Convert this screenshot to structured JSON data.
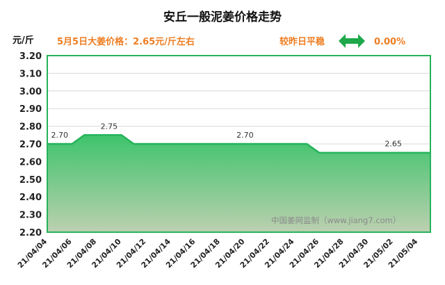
{
  "header": {
    "title": "安丘一般泥姜价格走势",
    "unit": "元/斤",
    "price_text": "5月5日大姜价格：2.65元/斤左右",
    "change_text": "较昨日平稳",
    "change_icon": "double-arrow-icon",
    "change_value": "0.00%"
  },
  "watermark": "中国姜网监制（www.jiang7.com）",
  "colors": {
    "accent": "#ee7d22",
    "line": "#25b35a",
    "fill_top": "#3ec46c",
    "fill_bottom": "#bcd0b0",
    "arrow": "#1ea84a"
  },
  "chart_data": {
    "type": "area",
    "x": [
      "21/04/04",
      "21/04/05",
      "21/04/06",
      "21/04/07",
      "21/04/08",
      "21/04/09",
      "21/04/10",
      "21/04/11",
      "21/04/12",
      "21/04/13",
      "21/04/14",
      "21/04/15",
      "21/04/16",
      "21/04/17",
      "21/04/18",
      "21/04/19",
      "21/04/20",
      "21/04/21",
      "21/04/22",
      "21/04/23",
      "21/04/24",
      "21/04/25",
      "21/04/26",
      "21/04/27",
      "21/04/28",
      "21/04/29",
      "21/04/30",
      "21/05/01",
      "21/05/02",
      "21/05/03",
      "21/05/04",
      "21/05/05"
    ],
    "values": [
      2.7,
      2.7,
      2.7,
      2.75,
      2.75,
      2.75,
      2.75,
      2.7,
      2.7,
      2.7,
      2.7,
      2.7,
      2.7,
      2.7,
      2.7,
      2.7,
      2.7,
      2.7,
      2.7,
      2.7,
      2.7,
      2.7,
      2.65,
      2.65,
      2.65,
      2.65,
      2.65,
      2.65,
      2.65,
      2.65,
      2.65,
      2.65
    ],
    "x_tick_labels": [
      "21/04/04",
      "21/04/06",
      "21/04/08",
      "21/04/10",
      "21/04/12",
      "21/04/14",
      "21/04/16",
      "21/04/18",
      "21/04/20",
      "21/04/22",
      "21/04/24",
      "21/04/26",
      "21/04/28",
      "21/04/30",
      "21/05/02",
      "21/05/04"
    ],
    "y_ticks": [
      "2.20",
      "2.30",
      "2.40",
      "2.50",
      "2.60",
      "2.70",
      "2.80",
      "2.90",
      "3.00",
      "3.10",
      "3.20"
    ],
    "ylim": [
      2.2,
      3.2
    ],
    "ylabel": "元/斤",
    "grid": true,
    "annotations": [
      {
        "x": "21/04/05",
        "label": "2.70"
      },
      {
        "x": "21/04/09",
        "label": "2.75"
      },
      {
        "x": "21/04/20",
        "label": "2.70"
      },
      {
        "x": "21/05/02",
        "label": "2.65"
      }
    ]
  }
}
